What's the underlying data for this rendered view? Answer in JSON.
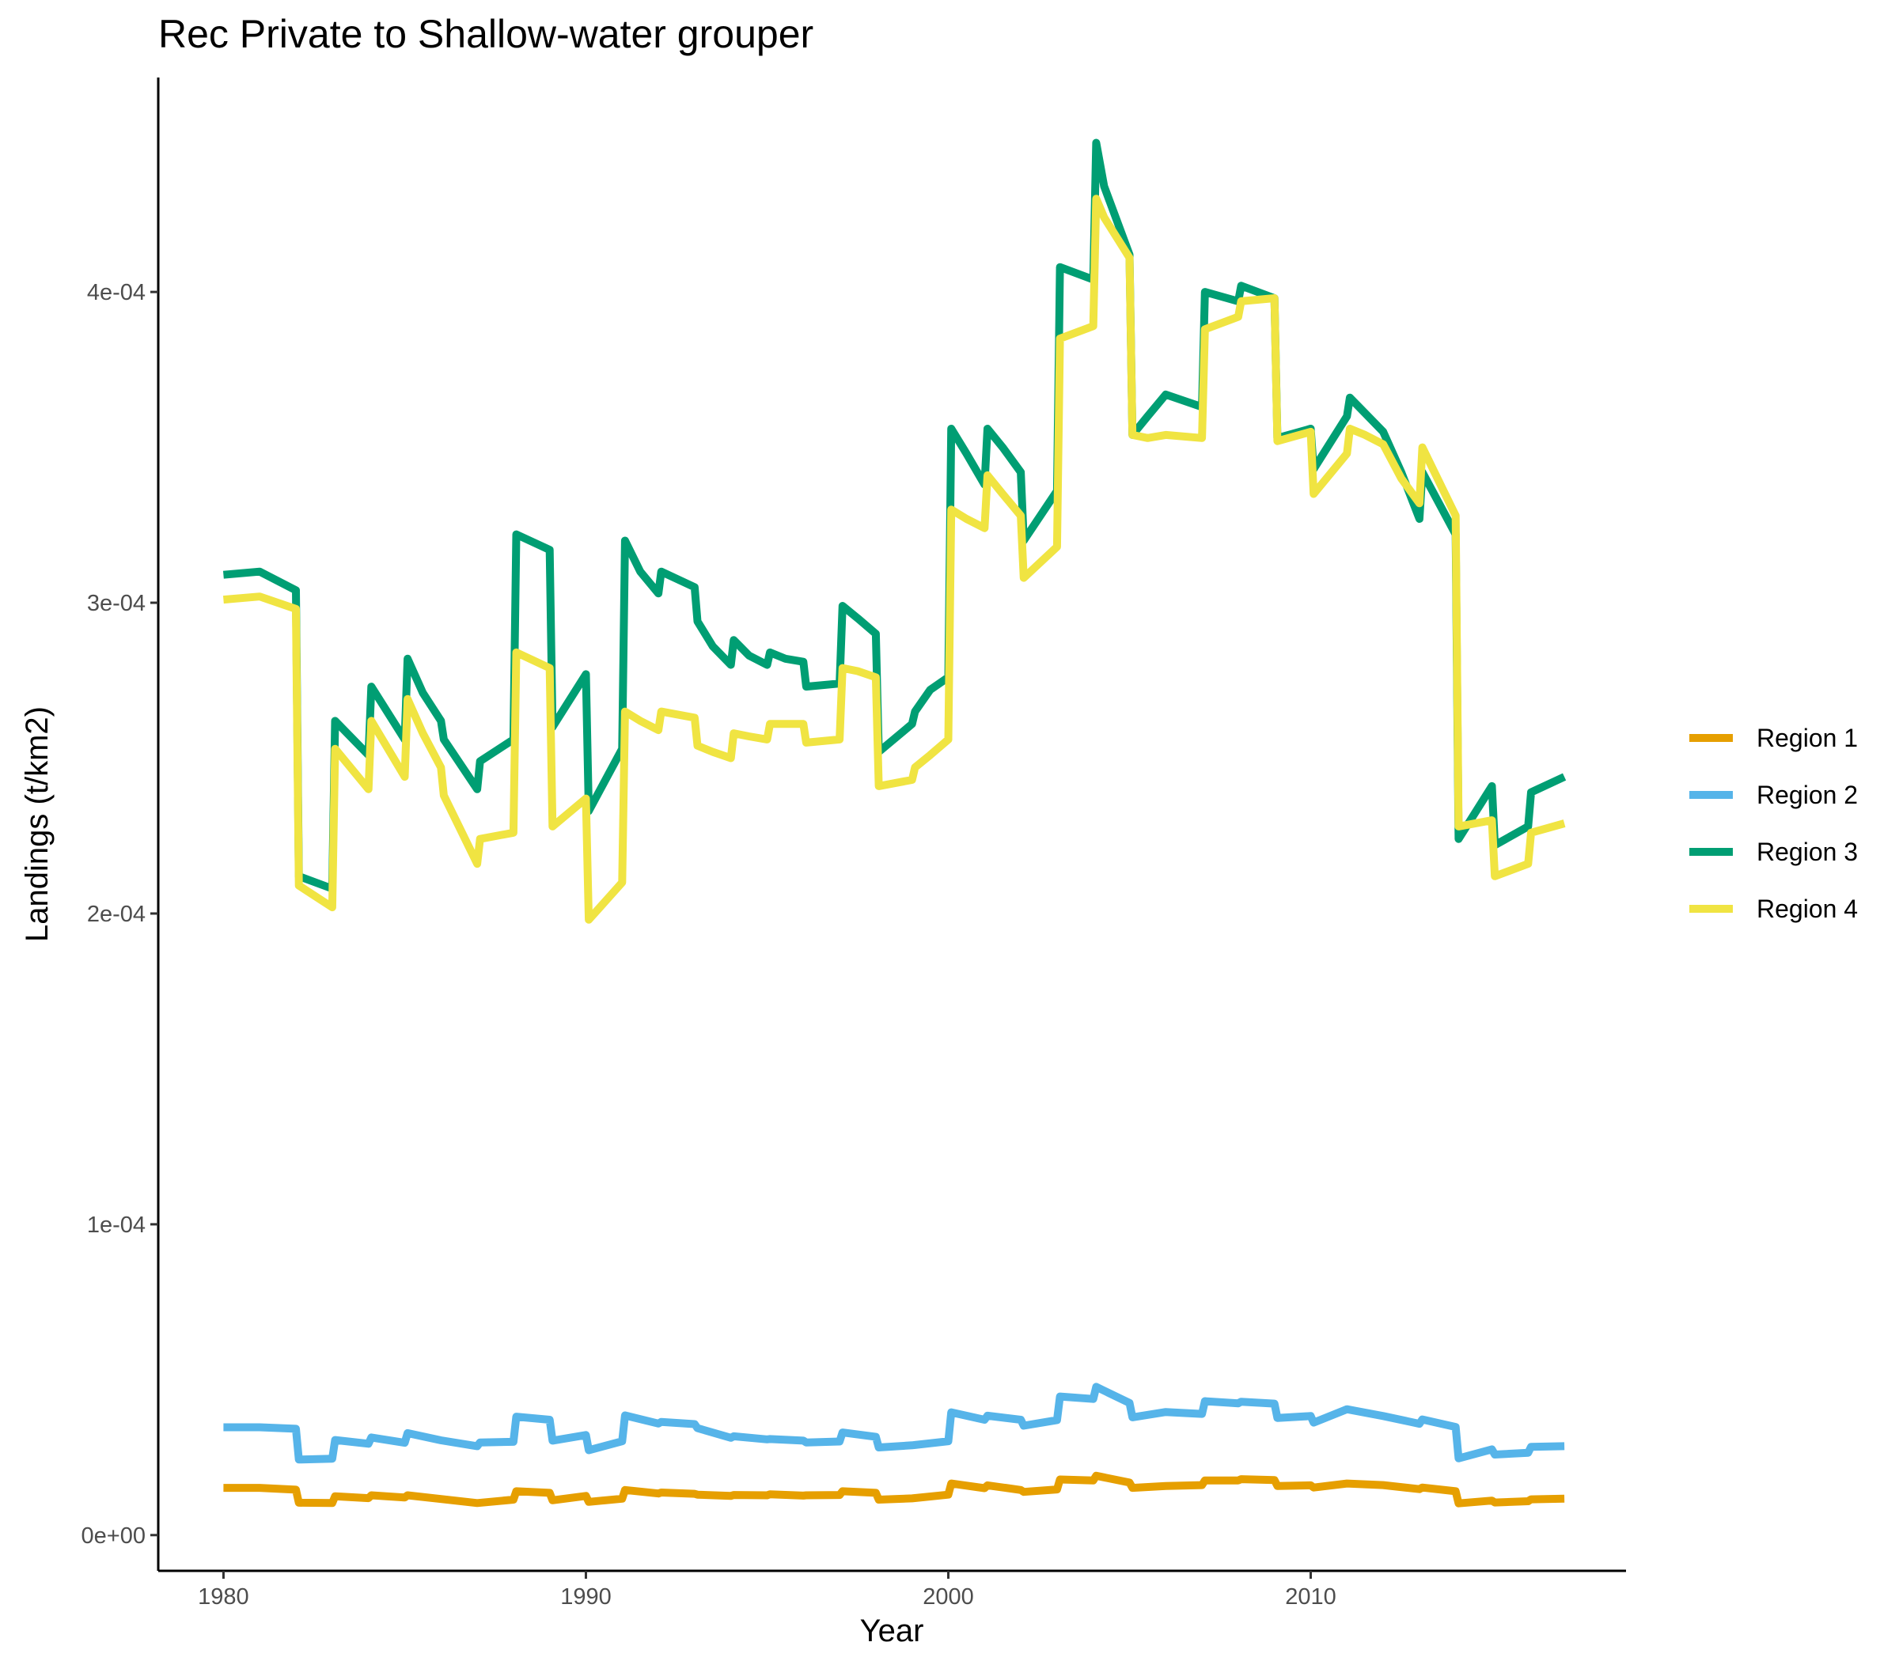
{
  "chart_data": {
    "type": "line",
    "title": "Rec Private to Shallow-water grouper",
    "xlabel": "Year",
    "ylabel": "Landings (t/km2)",
    "xlim": [
      1978.2,
      2018.7
    ],
    "ylim": [
      -1.15e-05,
      0.000469
    ],
    "x_ticks": [
      1980,
      1990,
      2000,
      2010
    ],
    "x_tick_labels": [
      "1980",
      "1990",
      "2000",
      "2010"
    ],
    "y_ticks": [
      0,
      0.0001,
      0.0002,
      0.0003,
      0.0004
    ],
    "y_tick_labels": [
      "0e+00",
      "1e-04",
      "2e-04",
      "3e-04",
      "4e-04"
    ],
    "grid": false,
    "legend": "right",
    "series": [
      {
        "name": "Region 1",
        "color": "#E69F00",
        "x": [
          1980,
          1981,
          1982,
          1982.08,
          1983,
          1983.08,
          1984,
          1984.08,
          1985,
          1985.08,
          1986,
          1987,
          1988,
          1988.08,
          1989,
          1989.08,
          1990,
          1990.08,
          1991,
          1991.08,
          1992,
          1992.08,
          1993,
          1993.08,
          1994,
          1994.08,
          1995,
          1995.08,
          1996,
          1996.08,
          1997,
          1997.08,
          1998,
          1998.08,
          1999,
          2000,
          2000.08,
          2001,
          2001.08,
          2002,
          2002.08,
          2003,
          2003.08,
          2004,
          2004.08,
          2005,
          2005.08,
          2006,
          2007,
          2007.08,
          2008,
          2008.08,
          2009,
          2009.08,
          2010,
          2010.08,
          2011,
          2012,
          2013,
          2013.08,
          2014,
          2014.08,
          2015,
          2015.08,
          2016,
          2016.08,
          2017
        ],
        "y": [
          1.52e-05,
          1.52e-05,
          1.46e-05,
          1.04e-05,
          1.03e-05,
          1.25e-05,
          1.19e-05,
          1.28e-05,
          1.21e-05,
          1.28e-05,
          1.16e-05,
          1.03e-05,
          1.14e-05,
          1.41e-05,
          1.36e-05,
          1.12e-05,
          1.26e-05,
          1.07e-05,
          1.17e-05,
          1.45e-05,
          1.34e-05,
          1.37e-05,
          1.33e-05,
          1.3e-05,
          1.26e-05,
          1.29e-05,
          1.28e-05,
          1.31e-05,
          1.27e-05,
          1.28e-05,
          1.29e-05,
          1.41e-05,
          1.36e-05,
          1.14e-05,
          1.18e-05,
          1.3e-05,
          1.66e-05,
          1.51e-05,
          1.6e-05,
          1.45e-05,
          1.39e-05,
          1.47e-05,
          1.79e-05,
          1.76e-05,
          1.91e-05,
          1.69e-05,
          1.52e-05,
          1.58e-05,
          1.61e-05,
          1.76e-05,
          1.76e-05,
          1.8e-05,
          1.77e-05,
          1.58e-05,
          1.6e-05,
          1.53e-05,
          1.66e-05,
          1.61e-05,
          1.48e-05,
          1.53e-05,
          1.41e-05,
          1.02e-05,
          1.11e-05,
          1.05e-05,
          1.09e-05,
          1.15e-05,
          1.17e-05
        ]
      },
      {
        "name": "Region 2",
        "color": "#56B4E9",
        "x": [
          1980,
          1981,
          1982,
          1982.08,
          1983,
          1983.08,
          1984,
          1984.08,
          1985,
          1985.08,
          1986,
          1987,
          1987.08,
          1988,
          1988.08,
          1989,
          1989.08,
          1990,
          1990.08,
          1991,
          1991.08,
          1992,
          1992.08,
          1993,
          1993.08,
          1994,
          1994.08,
          1995,
          1995.08,
          1996,
          1996.08,
          1997,
          1997.08,
          1998,
          1998.08,
          1999,
          1999.08,
          2000,
          2000.08,
          2001,
          2001.08,
          2002,
          2002.08,
          2003,
          2003.08,
          2004,
          2004.08,
          2005,
          2005.08,
          2006,
          2007,
          2007.08,
          2008,
          2008.08,
          2009,
          2009.08,
          2010,
          2010.08,
          2011,
          2012,
          2013,
          2013.08,
          2014,
          2014.08,
          2015,
          2015.08,
          2016,
          2016.08,
          2017
        ],
        "y": [
          3.47e-05,
          3.47e-05,
          3.42e-05,
          2.43e-05,
          2.46e-05,
          3.06e-05,
          2.94e-05,
          3.14e-05,
          2.97e-05,
          3.28e-05,
          3.05e-05,
          2.86e-05,
          2.98e-05,
          3e-05,
          3.81e-05,
          3.71e-05,
          3.04e-05,
          3.22e-05,
          2.73e-05,
          3.02e-05,
          3.85e-05,
          3.59e-05,
          3.64e-05,
          3.57e-05,
          3.44e-05,
          3.13e-05,
          3.18e-05,
          3.08e-05,
          3.09e-05,
          3.04e-05,
          2.98e-05,
          3.01e-05,
          3.3e-05,
          3.16e-05,
          2.82e-05,
          2.89e-05,
          2.9e-05,
          3.02e-05,
          3.95e-05,
          3.71e-05,
          3.84e-05,
          3.71e-05,
          3.52e-05,
          3.7e-05,
          4.46e-05,
          4.38e-05,
          4.77e-05,
          4.25e-05,
          3.79e-05,
          3.96e-05,
          3.9e-05,
          4.31e-05,
          4.24e-05,
          4.29e-05,
          4.23e-05,
          3.77e-05,
          3.83e-05,
          3.62e-05,
          4.05e-05,
          3.83e-05,
          3.58e-05,
          3.72e-05,
          3.48e-05,
          2.47e-05,
          2.76e-05,
          2.59e-05,
          2.65e-05,
          2.84e-05,
          2.86e-05
        ]
      },
      {
        "name": "Region 3",
        "color": "#009E73",
        "x": [
          1980,
          1981,
          1982,
          1982.08,
          1983,
          1983.08,
          1984,
          1984.08,
          1985,
          1985.08,
          1985.5,
          1986,
          1986.08,
          1987,
          1987.08,
          1988,
          1988.08,
          1989,
          1989.08,
          1990,
          1990.08,
          1991,
          1991.08,
          1991.5,
          1992,
          1992.08,
          1993,
          1993.08,
          1993.5,
          1994,
          1994.08,
          1994.5,
          1995,
          1995.08,
          1995.5,
          1996,
          1996.08,
          1997,
          1997.08,
          1997.5,
          1998,
          1998.08,
          1999,
          1999.08,
          1999.5,
          2000,
          2000.08,
          2000.5,
          2001,
          2001.08,
          2001.5,
          2002,
          2002.08,
          2003,
          2003.08,
          2004,
          2004.08,
          2004.3,
          2005,
          2005.08,
          2005.5,
          2006,
          2007,
          2007.08,
          2008,
          2008.08,
          2009,
          2009.08,
          2010,
          2010.08,
          2011,
          2011.08,
          2011.5,
          2012,
          2012.5,
          2013,
          2013.08,
          2014,
          2014.08,
          2015,
          2015.08,
          2016,
          2016.08,
          2017
        ],
        "y": [
          0.000309,
          0.00031,
          0.000304,
          0.000212,
          0.000208,
          0.000262,
          0.000251,
          0.000273,
          0.000256,
          0.000282,
          0.000271,
          0.000262,
          0.000256,
          0.00024,
          0.000249,
          0.000256,
          0.000322,
          0.000317,
          0.00026,
          0.000277,
          0.000233,
          0.000253,
          0.00032,
          0.00031,
          0.000303,
          0.00031,
          0.000305,
          0.000294,
          0.000286,
          0.00028,
          0.000288,
          0.000283,
          0.00028,
          0.000284,
          0.000282,
          0.000281,
          0.000273,
          0.000274,
          0.000299,
          0.000295,
          0.00029,
          0.000252,
          0.000261,
          0.000265,
          0.000272,
          0.000276,
          0.000356,
          0.000348,
          0.000338,
          0.000356,
          0.00035,
          0.000342,
          0.00032,
          0.000336,
          0.000408,
          0.000404,
          0.000448,
          0.000434,
          0.000412,
          0.000354,
          0.00036,
          0.000367,
          0.000363,
          0.0004,
          0.000397,
          0.000402,
          0.000398,
          0.000353,
          0.000356,
          0.000343,
          0.00036,
          0.000366,
          0.000361,
          0.000355,
          0.000342,
          0.000327,
          0.000342,
          0.000322,
          0.000224,
          0.000241,
          0.000222,
          0.000228,
          0.000239,
          0.000244
        ]
      },
      {
        "name": "Region 4",
        "color": "#F0E442",
        "x": [
          1980,
          1981,
          1982,
          1982.08,
          1983,
          1983.08,
          1984,
          1984.08,
          1985,
          1985.08,
          1985.5,
          1986,
          1986.08,
          1987,
          1987.08,
          1988,
          1988.08,
          1989,
          1989.08,
          1990,
          1990.08,
          1991,
          1991.08,
          1991.5,
          1992,
          1992.08,
          1993,
          1993.08,
          1993.5,
          1994,
          1994.08,
          1994.5,
          1995,
          1995.08,
          1995.5,
          1996,
          1996.08,
          1997,
          1997.08,
          1997.5,
          1998,
          1998.08,
          1999,
          1999.08,
          1999.5,
          2000,
          2000.08,
          2000.5,
          2001,
          2001.08,
          2001.5,
          2002,
          2002.08,
          2003,
          2003.08,
          2004,
          2004.08,
          2004.3,
          2005,
          2005.08,
          2005.5,
          2006,
          2007,
          2007.08,
          2008,
          2008.08,
          2009,
          2009.08,
          2010,
          2010.08,
          2011,
          2011.08,
          2011.5,
          2012,
          2012.5,
          2013,
          2013.08,
          2014,
          2014.08,
          2015,
          2015.08,
          2016,
          2016.08,
          2017
        ],
        "y": [
          0.000301,
          0.000302,
          0.000298,
          0.000209,
          0.000202,
          0.000253,
          0.00024,
          0.000262,
          0.000244,
          0.000269,
          0.000258,
          0.000247,
          0.000238,
          0.000216,
          0.000224,
          0.000226,
          0.000284,
          0.000279,
          0.000228,
          0.000237,
          0.000198,
          0.00021,
          0.000265,
          0.000262,
          0.000259,
          0.000265,
          0.000263,
          0.000254,
          0.000252,
          0.00025,
          0.000258,
          0.000257,
          0.000256,
          0.000261,
          0.000261,
          0.000261,
          0.000255,
          0.000256,
          0.000279,
          0.000278,
          0.000276,
          0.000241,
          0.000243,
          0.000247,
          0.000251,
          0.000256,
          0.00033,
          0.000327,
          0.000324,
          0.000341,
          0.000335,
          0.000328,
          0.000308,
          0.000318,
          0.000385,
          0.000389,
          0.00043,
          0.000424,
          0.000411,
          0.000354,
          0.000353,
          0.000354,
          0.000353,
          0.000388,
          0.000392,
          0.000397,
          0.000398,
          0.000352,
          0.000355,
          0.000335,
          0.000348,
          0.000356,
          0.000354,
          0.000351,
          0.00034,
          0.000332,
          0.00035,
          0.000328,
          0.000228,
          0.00023,
          0.000212,
          0.000216,
          0.000226,
          0.000229
        ]
      }
    ]
  }
}
